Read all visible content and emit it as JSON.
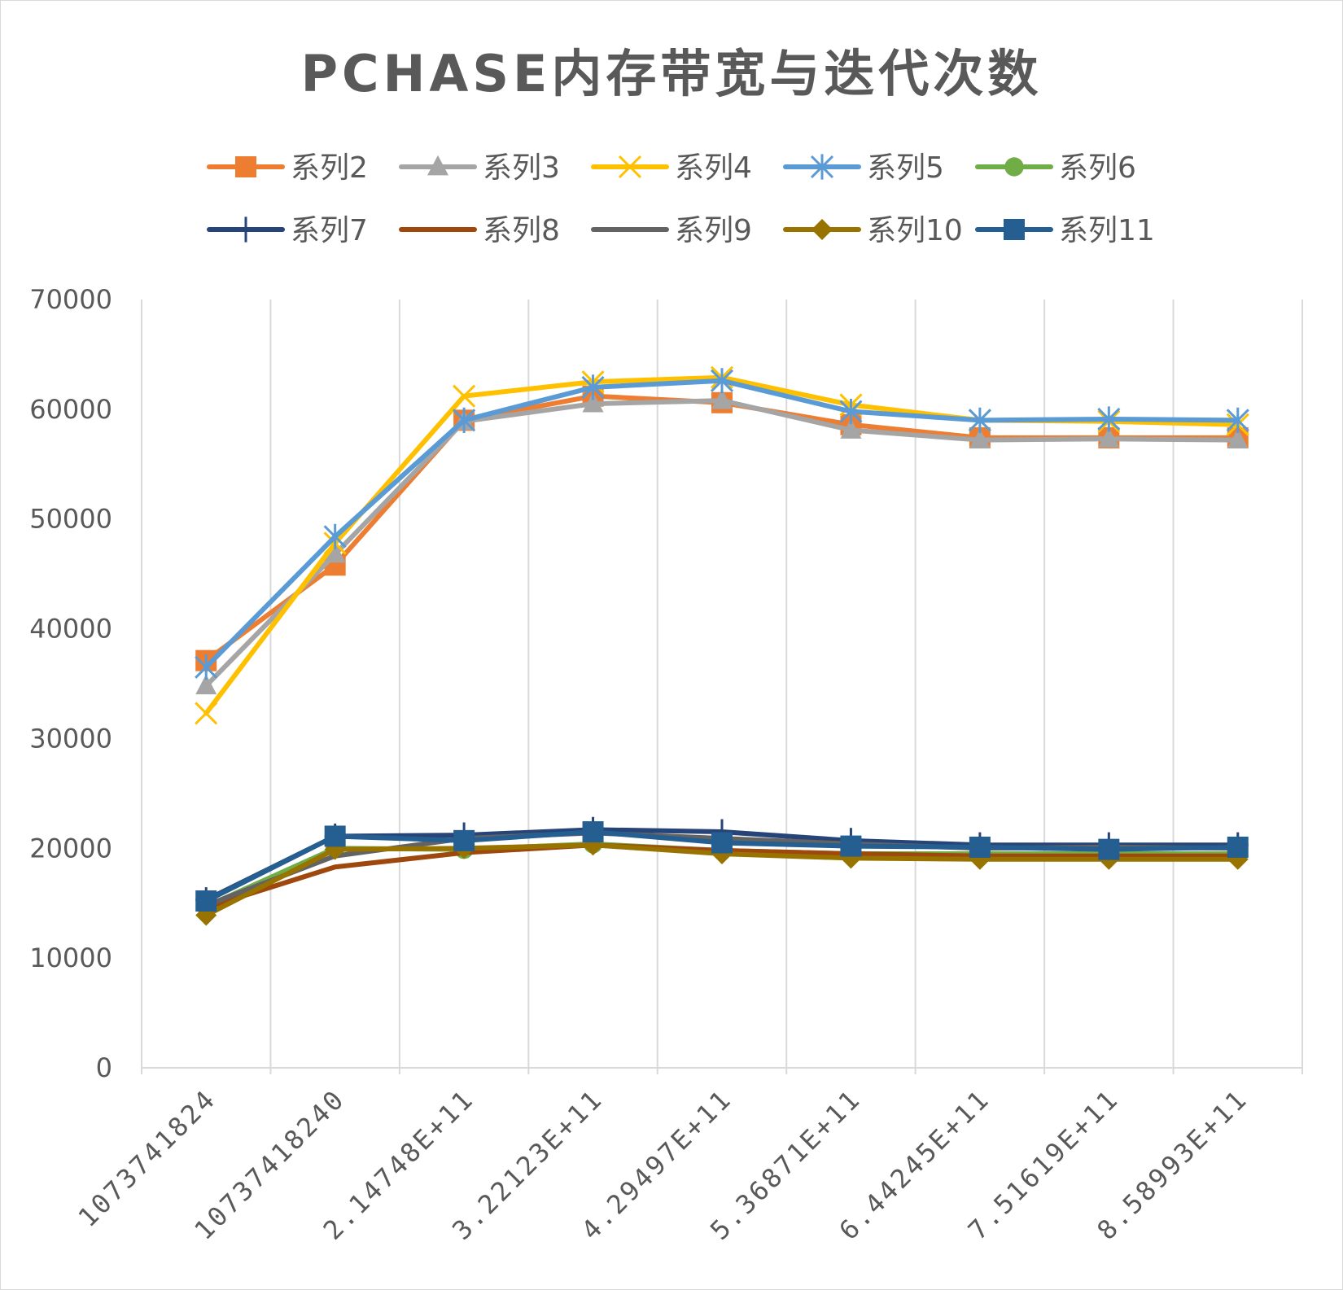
{
  "chart_data": {
    "type": "line",
    "title": "PCHASE内存带宽与迭代次数",
    "xlabel": "",
    "ylabel": "",
    "ylim": [
      0,
      70000
    ],
    "yticks": [
      0,
      10000,
      20000,
      30000,
      40000,
      50000,
      60000,
      70000
    ],
    "categories": [
      "1073741824",
      "10737418240",
      "2.14748E+11",
      "3.22123E+11",
      "4.29497E+11",
      "5.36871E+11",
      "6.44245E+11",
      "7.51619E+11",
      "8.58993E+11"
    ],
    "grid": "vertical",
    "legend_position": "top",
    "series": [
      {
        "name": "系列2",
        "color": "#ED7D31",
        "marker": "square",
        "values": [
          37100,
          45800,
          59000,
          61200,
          60600,
          58600,
          57400,
          57400,
          57400
        ]
      },
      {
        "name": "系列3",
        "color": "#A5A5A5",
        "marker": "triangle",
        "values": [
          34800,
          46800,
          58900,
          60500,
          60800,
          58100,
          57200,
          57300,
          57200
        ]
      },
      {
        "name": "系列4",
        "color": "#FFC000",
        "marker": "x",
        "values": [
          32300,
          47800,
          61200,
          62500,
          62900,
          60400,
          59000,
          58900,
          58600
        ]
      },
      {
        "name": "系列5",
        "color": "#5B9BD5",
        "marker": "asterisk",
        "values": [
          36500,
          48400,
          59000,
          62000,
          62600,
          59800,
          59000,
          59100,
          59000
        ]
      },
      {
        "name": "系列6",
        "color": "#70AD47",
        "marker": "circle",
        "values": [
          14700,
          20000,
          19900,
          20400,
          19800,
          19500,
          19500,
          19500,
          19500
        ]
      },
      {
        "name": "系列7",
        "color": "#264478",
        "marker": "plus",
        "values": [
          15300,
          21100,
          21200,
          21700,
          21500,
          20700,
          20300,
          20300,
          20300
        ]
      },
      {
        "name": "系列8",
        "color": "#9E480E",
        "marker": "none",
        "values": [
          14600,
          18300,
          19600,
          20300,
          19800,
          19500,
          19300,
          19300,
          19300
        ]
      },
      {
        "name": "系列9",
        "color": "#636363",
        "marker": "none",
        "values": [
          14800,
          19300,
          20900,
          21400,
          20900,
          20400,
          20000,
          20100,
          20000
        ]
      },
      {
        "name": "系列10",
        "color": "#997300",
        "marker": "diamond",
        "values": [
          13900,
          19900,
          20000,
          20300,
          19500,
          19100,
          19000,
          19000,
          19000
        ]
      },
      {
        "name": "系列11",
        "color": "#255E91",
        "marker": "square",
        "values": [
          15200,
          21100,
          20700,
          21500,
          20500,
          20200,
          20100,
          19900,
          20100
        ]
      }
    ]
  }
}
